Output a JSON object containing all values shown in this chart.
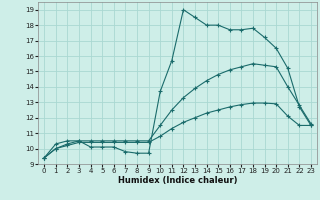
{
  "xlabel": "Humidex (Indice chaleur)",
  "bg_color": "#ceeee8",
  "grid_color": "#aad8d2",
  "line_color": "#1a6b6b",
  "xlim": [
    -0.5,
    23.5
  ],
  "ylim": [
    9,
    19.5
  ],
  "yticks": [
    9,
    10,
    11,
    12,
    13,
    14,
    15,
    16,
    17,
    18,
    19
  ],
  "xticks": [
    0,
    1,
    2,
    3,
    4,
    5,
    6,
    7,
    8,
    9,
    10,
    11,
    12,
    13,
    14,
    15,
    16,
    17,
    18,
    19,
    20,
    21,
    22,
    23
  ],
  "line1_x": [
    0,
    1,
    2,
    3,
    4,
    5,
    6,
    7,
    8,
    9,
    10,
    11,
    12,
    13,
    14,
    15,
    16,
    17,
    18,
    19,
    20,
    21,
    22,
    23
  ],
  "line1_y": [
    9.4,
    10.3,
    10.5,
    10.5,
    10.1,
    10.1,
    10.1,
    9.8,
    9.7,
    9.7,
    13.7,
    15.7,
    19.0,
    18.5,
    18.0,
    18.0,
    17.7,
    17.7,
    17.8,
    17.2,
    16.5,
    15.2,
    12.7,
    11.5
  ],
  "line2_x": [
    0,
    1,
    2,
    3,
    4,
    5,
    6,
    7,
    8,
    9,
    10,
    11,
    12,
    13,
    14,
    15,
    16,
    17,
    18,
    19,
    20,
    21,
    22,
    23
  ],
  "line2_y": [
    9.4,
    10.0,
    10.3,
    10.5,
    10.5,
    10.5,
    10.5,
    10.5,
    10.5,
    10.5,
    11.5,
    12.5,
    13.3,
    13.9,
    14.4,
    14.8,
    15.1,
    15.3,
    15.5,
    15.4,
    15.3,
    14.0,
    12.8,
    11.6
  ],
  "line3_x": [
    0,
    1,
    2,
    3,
    4,
    5,
    6,
    7,
    8,
    9,
    10,
    11,
    12,
    13,
    14,
    15,
    16,
    17,
    18,
    19,
    20,
    21,
    22,
    23
  ],
  "line3_y": [
    9.4,
    10.0,
    10.2,
    10.4,
    10.4,
    10.4,
    10.4,
    10.4,
    10.4,
    10.4,
    10.8,
    11.3,
    11.7,
    12.0,
    12.3,
    12.5,
    12.7,
    12.85,
    12.95,
    12.95,
    12.9,
    12.1,
    11.5,
    11.5
  ]
}
